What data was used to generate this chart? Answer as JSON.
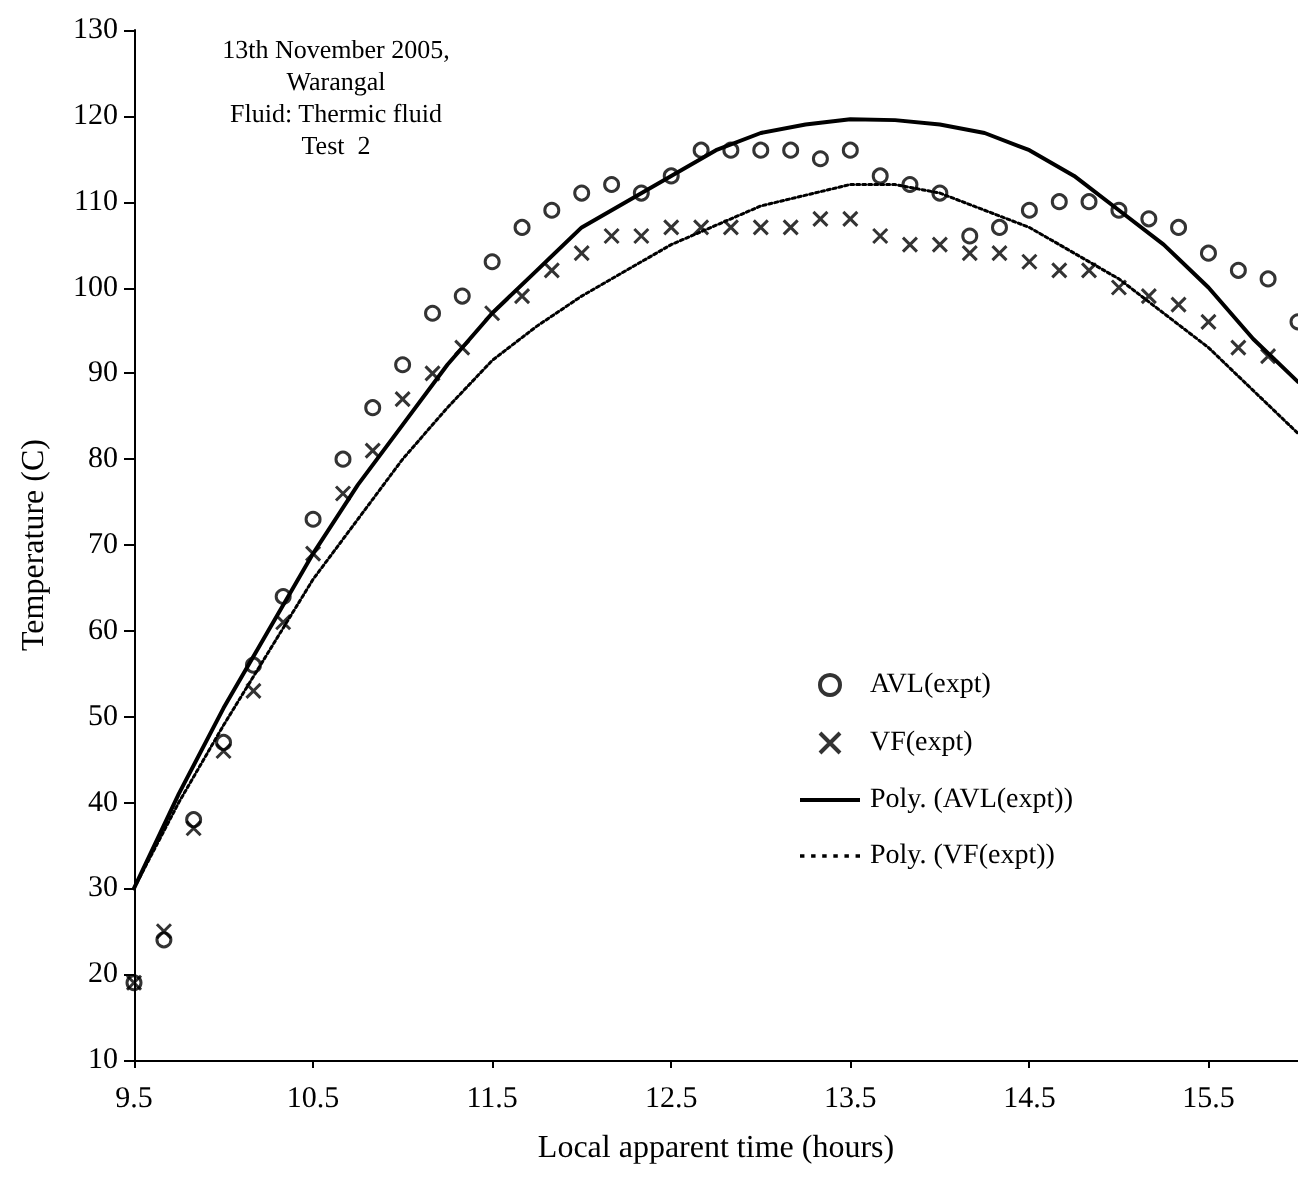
{
  "chart_data": {
    "type": "scatter",
    "xlabel": "Local apparent time (hours)",
    "ylabel": "Temperature (C)",
    "annotations": [
      "13th November 2005,",
      "Warangal",
      "Fluid: Thermic fluid",
      "Test  2"
    ],
    "xlim": [
      9.5,
      16
    ],
    "xticks": [
      9.5,
      10.5,
      11.5,
      12.5,
      13.5,
      14.5,
      15.5
    ],
    "ylim": [
      10,
      130
    ],
    "yticks": [
      10,
      20,
      30,
      40,
      50,
      60,
      70,
      80,
      90,
      100,
      110,
      120,
      130
    ],
    "grid": false,
    "legend": "right",
    "series": [
      {
        "name": "AVL(expt)",
        "type": "scatter",
        "marker": "circle",
        "color": "#000000",
        "x": [
          9.5,
          9.667,
          9.833,
          10,
          10.167,
          10.333,
          10.5,
          10.667,
          10.833,
          11,
          11.167,
          11.333,
          11.5,
          11.667,
          11.833,
          12,
          12.167,
          12.333,
          12.5,
          12.667,
          12.833,
          13,
          13.167,
          13.333,
          13.5,
          13.667,
          13.833,
          14,
          14.167,
          14.333,
          14.5,
          14.667,
          14.833,
          15,
          15.167,
          15.333,
          15.5,
          15.667,
          15.833,
          16
        ],
        "values": [
          19,
          24,
          38,
          47,
          56,
          64,
          73,
          80,
          86,
          91,
          97,
          99,
          103,
          107,
          109,
          111,
          112,
          111,
          113,
          116,
          116,
          116,
          116,
          115,
          116,
          113,
          112,
          111,
          106,
          107,
          109,
          110,
          110,
          109,
          108,
          107,
          104,
          102,
          101,
          96
        ]
      },
      {
        "name": "VF(expt)",
        "type": "scatter",
        "marker": "cross",
        "color": "#000000",
        "x": [
          9.5,
          9.667,
          9.833,
          10,
          10.167,
          10.333,
          10.5,
          10.667,
          10.833,
          11,
          11.167,
          11.333,
          11.5,
          11.667,
          11.833,
          12,
          12.167,
          12.333,
          12.5,
          12.667,
          12.833,
          13,
          13.167,
          13.333,
          13.5,
          13.667,
          13.833,
          14,
          14.167,
          14.333,
          14.5,
          14.667,
          14.833,
          15,
          15.167,
          15.333,
          15.5,
          15.667,
          15.833
        ],
        "values": [
          19,
          25,
          37,
          46,
          53,
          61,
          69,
          76,
          81,
          87,
          90,
          93,
          97,
          99,
          102,
          104,
          106,
          106,
          107,
          107,
          107,
          107,
          107,
          108,
          108,
          106,
          105,
          105,
          104,
          104,
          103,
          102,
          102,
          100,
          99,
          98,
          96,
          93,
          92
        ]
      },
      {
        "name": "Poly. (AVL(expt))",
        "type": "line",
        "line_style": "solid",
        "color": "#000000",
        "x": [
          9.5,
          9.75,
          10,
          10.25,
          10.5,
          10.75,
          11,
          11.25,
          11.5,
          11.75,
          12,
          12.25,
          12.5,
          12.75,
          13,
          13.25,
          13.5,
          13.75,
          14,
          14.25,
          14.5,
          14.75,
          15,
          15.25,
          15.5,
          15.75,
          16
        ],
        "values": [
          30,
          41,
          51,
          60,
          69,
          77,
          84,
          91,
          97,
          102,
          107,
          110,
          113,
          116,
          118,
          119,
          119.6,
          119.5,
          119,
          118,
          116,
          113,
          109,
          105,
          100,
          94,
          89
        ]
      },
      {
        "name": "Poly. (VF(expt))",
        "type": "line",
        "line_style": "dotted",
        "color": "#000000",
        "x": [
          9.5,
          9.75,
          10,
          10.25,
          10.5,
          10.75,
          11,
          11.25,
          11.5,
          11.75,
          12,
          12.5,
          13,
          13.5,
          13.75,
          14,
          14.5,
          15,
          15.5,
          16
        ],
        "values": [
          30,
          40,
          49,
          57.5,
          66,
          73,
          80,
          86,
          91.5,
          95.5,
          99,
          105,
          109.5,
          112,
          112,
          111,
          107,
          101,
          93,
          83
        ]
      }
    ]
  }
}
